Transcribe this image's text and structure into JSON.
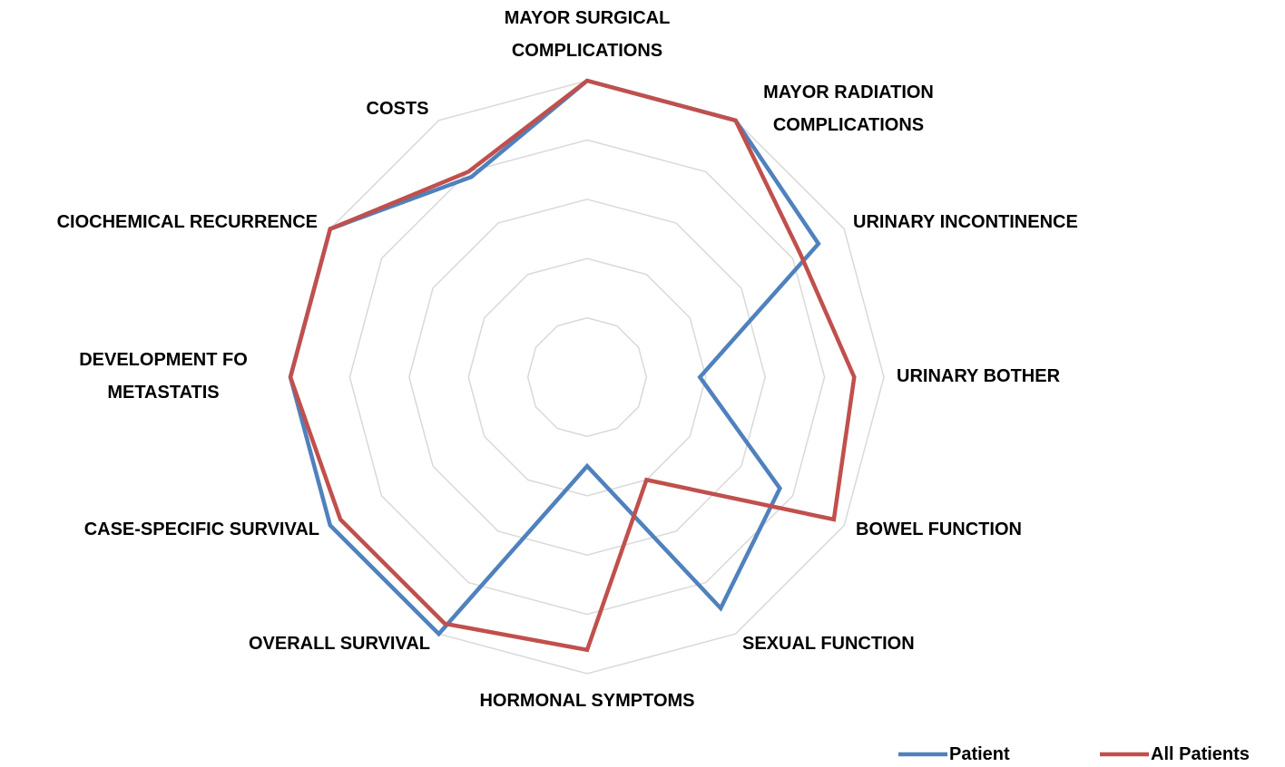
{
  "chart_data": {
    "type": "radar",
    "categories": [
      "MAYOR SURGICAL COMPLICATIONS",
      "MAYOR RADIATION COMPLICATIONS",
      "URINARY INCONTINENCE",
      "URINARY BOTHER",
      "BOWEL FUNCTION",
      "SEXUAL FUNCTION",
      "HORMONAL SYMPTOMS",
      "OVERALL SURVIVAL",
      "CASE-SPECIFIC SURVIVAL",
      "DEVELOPMENT FO METASTATIS",
      "CIOCHEMICAL RECURRENCE",
      "COSTS"
    ],
    "series": [
      {
        "name": "Patient",
        "color": "#4f81bd",
        "values": [
          5,
          5,
          4.5,
          1.9,
          3.75,
          4.5,
          1.5,
          5,
          5,
          5,
          5,
          3.9
        ]
      },
      {
        "name": "All Patients",
        "color": "#c0504d",
        "values": [
          5,
          5,
          4.15,
          4.5,
          4.8,
          2.0,
          4.6,
          4.8,
          4.8,
          5,
          5,
          4.0
        ]
      }
    ],
    "rlim": [
      0,
      5
    ],
    "rticks": [
      1,
      2,
      3,
      4,
      5
    ],
    "grid": true,
    "legend": "bottom-right"
  }
}
